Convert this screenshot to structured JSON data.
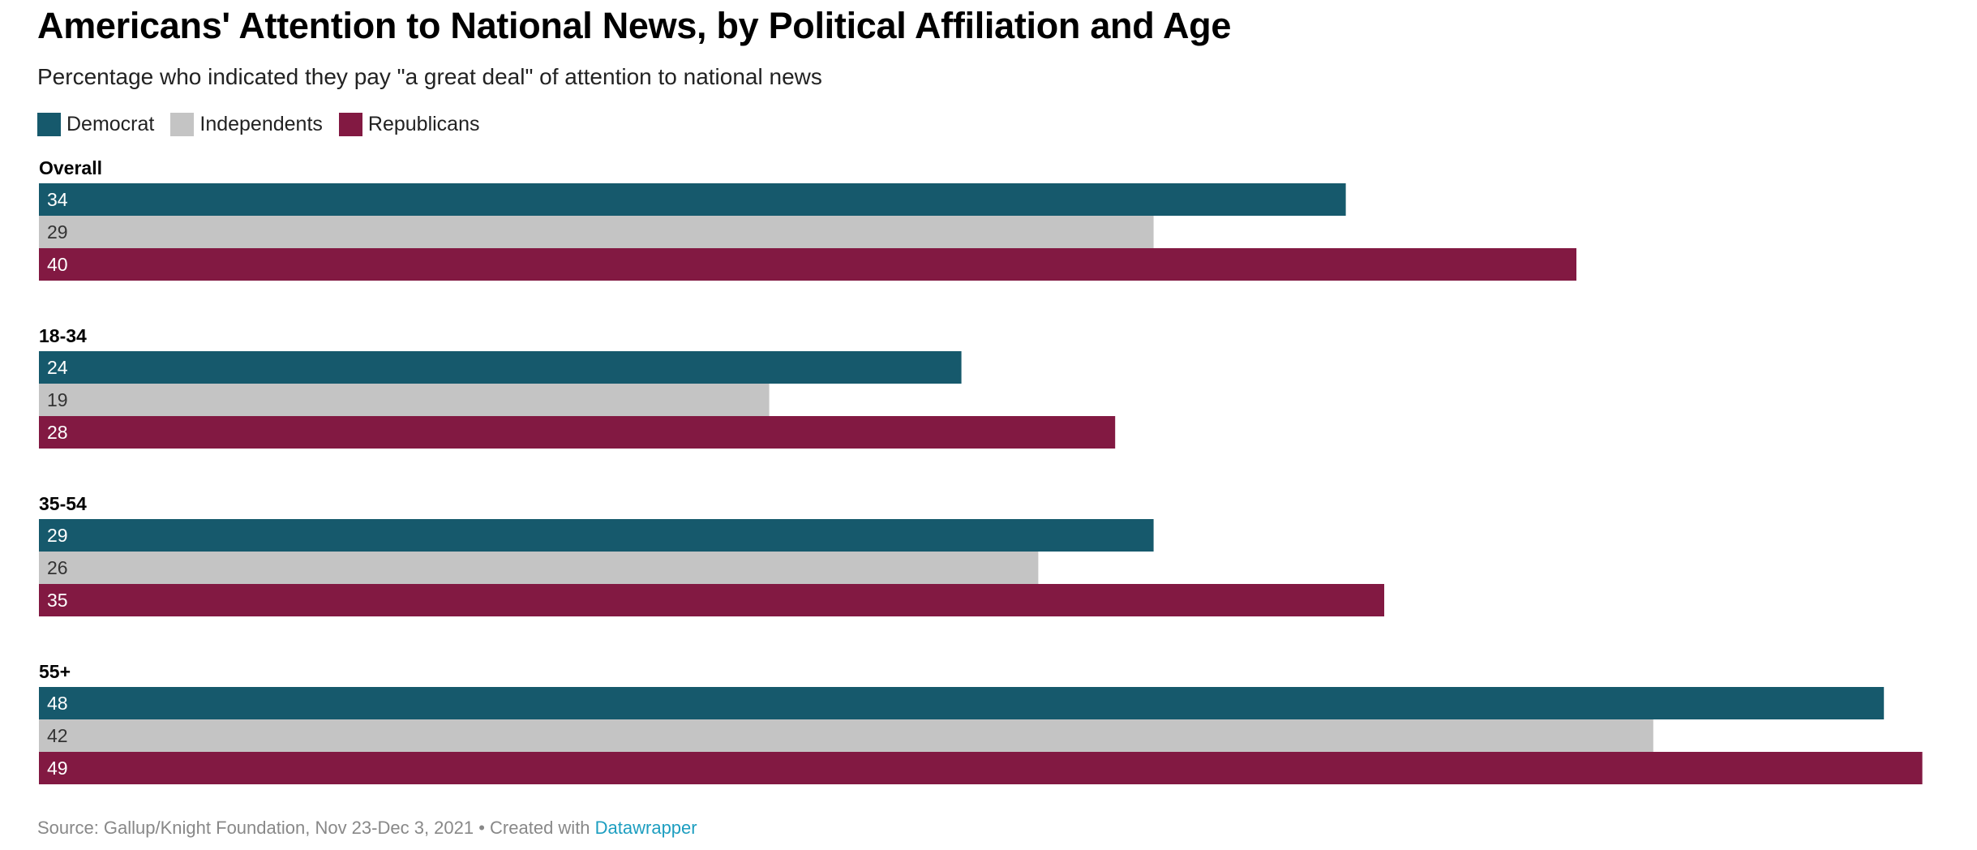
{
  "title": "Americans' Attention to National News, by Political Affiliation and Age",
  "subtitle": "Percentage who indicated they pay \"a great deal\" of attention to national news",
  "legend": [
    {
      "label": "Democrat",
      "color": "#16596c"
    },
    {
      "label": "Independents",
      "color": "#c4c4c4"
    },
    {
      "label": "Republicans",
      "color": "#821942"
    }
  ],
  "footer": {
    "source_text": "Source: Gallup/Knight Foundation, Nov 23-Dec 3, 2021 • Created with ",
    "link_text": "Datawrapper"
  },
  "chart_data": {
    "type": "bar",
    "orientation": "horizontal",
    "title": "Americans' Attention to National News, by Political Affiliation and Age",
    "subtitle": "Percentage who indicated they pay \"a great deal\" of attention to national news",
    "categories": [
      "Overall",
      "18-34",
      "35-54",
      "55+"
    ],
    "series": [
      {
        "name": "Democrat",
        "color": "#16596c",
        "label_color": "#ffffff",
        "values": [
          34,
          24,
          29,
          48
        ]
      },
      {
        "name": "Independents",
        "color": "#c4c4c4",
        "label_color": "#333333",
        "values": [
          29,
          19,
          26,
          42
        ]
      },
      {
        "name": "Republicans",
        "color": "#821942",
        "label_color": "#ffffff",
        "values": [
          40,
          28,
          35,
          49
        ]
      }
    ],
    "xlim": [
      0,
      49
    ],
    "grid": false,
    "legend_position": "top-left"
  }
}
